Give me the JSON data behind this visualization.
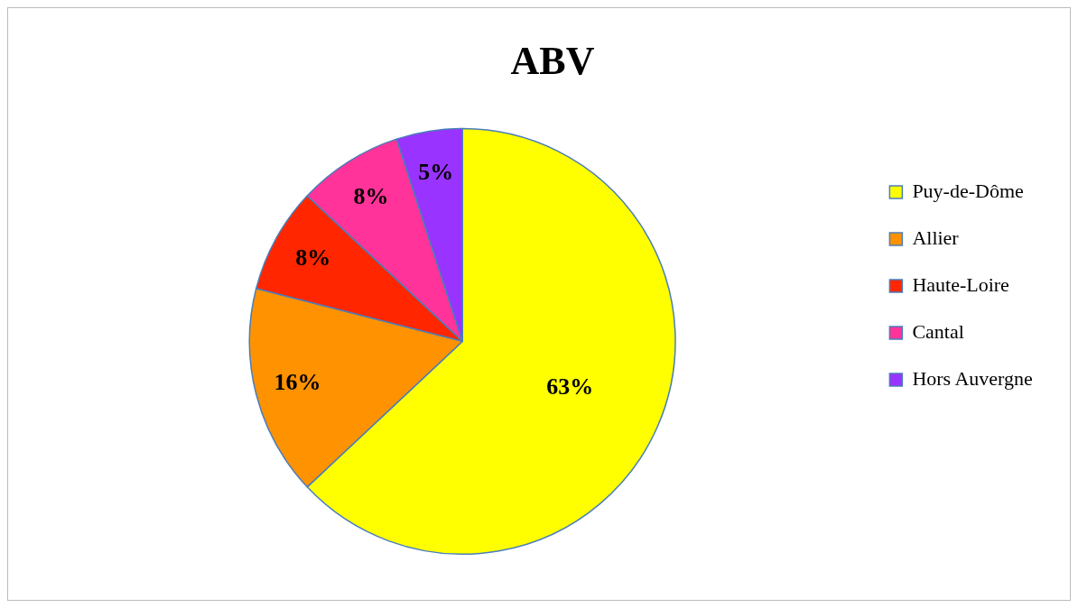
{
  "chart_data": {
    "type": "pie",
    "title": "ABV",
    "categories": [
      "Puy-de-Dôme",
      "Allier",
      "Haute-Loire",
      "Cantal",
      "Hors Auvergne"
    ],
    "values": [
      63,
      16,
      8,
      8,
      5
    ],
    "colors": [
      "#ffff00",
      "#ff9200",
      "#ff2600",
      "#ff3399",
      "#9933ff"
    ],
    "value_labels": [
      "63%",
      "16%",
      "8%",
      "8%",
      "5%"
    ],
    "legend": "right"
  }
}
